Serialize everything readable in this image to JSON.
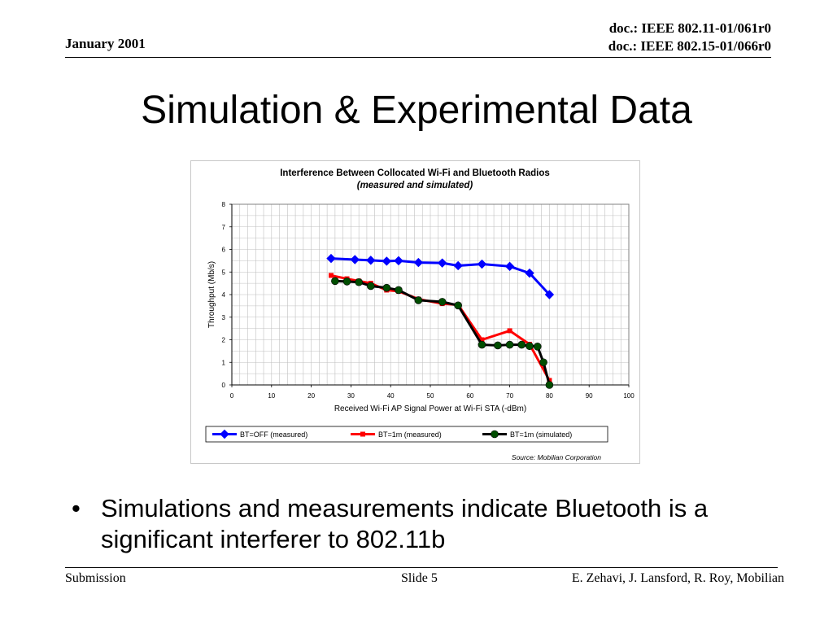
{
  "header": {
    "date": "January 2001",
    "doc_line1": "doc.: IEEE 802.11-01/061r0",
    "doc_line2": "doc.: IEEE 802.15-01/066r0"
  },
  "slide_title": "Simulation & Experimental Data",
  "bullet": {
    "symbol": "•",
    "text": "Simulations and measurements indicate Bluetooth is a significant interferer to 802.11b"
  },
  "footer": {
    "left": "Submission",
    "center": "Slide 5",
    "right": "E. Zehavi, J. Lansford, R. Roy, Mobilian"
  },
  "chart_data": {
    "type": "line",
    "title": "Interference Between Collocated Wi-Fi and Bluetooth Radios",
    "subtitle": "(measured and simulated)",
    "xlabel": "Received Wi-Fi AP Signal Power at Wi-Fi STA (-dBm)",
    "ylabel": "Throughput (Mb/s)",
    "xlim": [
      0,
      100
    ],
    "ylim": [
      0,
      8
    ],
    "xticks": [
      "0",
      "10",
      "20",
      "30",
      "40",
      "50",
      "60",
      "70",
      "80",
      "90",
      "100"
    ],
    "yticks": [
      "0",
      "1",
      "2",
      "3",
      "4",
      "5",
      "6",
      "7",
      "8"
    ],
    "grid": true,
    "legend_position": "bottom",
    "source_note": "Source:  Mobilian Corporation",
    "series": [
      {
        "name": "BT=OFF (measured)",
        "color": "#0000ff",
        "marker": "diamond",
        "points": [
          [
            25,
            5.6
          ],
          [
            31,
            5.55
          ],
          [
            35,
            5.52
          ],
          [
            39,
            5.48
          ],
          [
            42,
            5.5
          ],
          [
            47,
            5.42
          ],
          [
            53,
            5.4
          ],
          [
            57,
            5.28
          ],
          [
            63,
            5.35
          ],
          [
            70,
            5.25
          ],
          [
            75,
            4.95
          ],
          [
            80,
            4.0
          ]
        ]
      },
      {
        "name": "BT=1m (measured)",
        "color": "#ff0000",
        "marker": "square",
        "points": [
          [
            25,
            4.85
          ],
          [
            29,
            4.7
          ],
          [
            32,
            4.6
          ],
          [
            35,
            4.5
          ],
          [
            39,
            4.2
          ],
          [
            42,
            4.15
          ],
          [
            47,
            3.8
          ],
          [
            53,
            3.6
          ],
          [
            57,
            3.55
          ],
          [
            63,
            2.0
          ],
          [
            70,
            2.4
          ],
          [
            75,
            1.8
          ],
          [
            80,
            0.2
          ]
        ]
      },
      {
        "name": "BT=1m (simulated)",
        "color": "#000000",
        "marker_color": "#004d00",
        "marker": "circle",
        "points": [
          [
            26,
            4.6
          ],
          [
            29,
            4.58
          ],
          [
            32,
            4.55
          ],
          [
            35,
            4.38
          ],
          [
            39,
            4.3
          ],
          [
            42,
            4.2
          ],
          [
            47,
            3.75
          ],
          [
            53,
            3.68
          ],
          [
            57,
            3.52
          ],
          [
            63,
            1.78
          ],
          [
            67,
            1.75
          ],
          [
            70,
            1.78
          ],
          [
            73,
            1.78
          ],
          [
            75,
            1.72
          ],
          [
            77,
            1.7
          ],
          [
            78.5,
            1.0
          ],
          [
            80,
            0.0
          ]
        ]
      }
    ]
  }
}
